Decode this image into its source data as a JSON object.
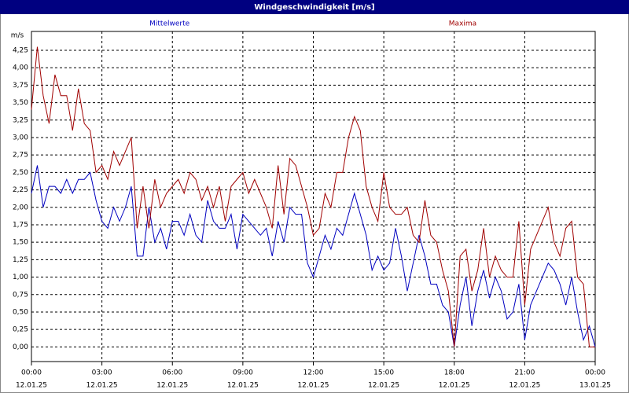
{
  "chart_data": {
    "type": "line",
    "title": "Windgeschwindigkeit [m/s]",
    "y_label": "m/s",
    "x": [
      0,
      0.25,
      0.5,
      0.75,
      1,
      1.25,
      1.5,
      1.75,
      2,
      2.25,
      2.5,
      2.75,
      3,
      3.25,
      3.5,
      3.75,
      4,
      4.25,
      4.5,
      4.75,
      5,
      5.25,
      5.5,
      5.75,
      6,
      6.25,
      6.5,
      6.75,
      7,
      7.25,
      7.5,
      7.75,
      8,
      8.25,
      8.5,
      8.75,
      9,
      9.25,
      9.5,
      9.75,
      10,
      10.25,
      10.5,
      10.75,
      11,
      11.25,
      11.5,
      11.75,
      12,
      12.25,
      12.5,
      12.75,
      13,
      13.25,
      13.5,
      13.75,
      14,
      14.25,
      14.5,
      14.75,
      15,
      15.25,
      15.5,
      15.75,
      16,
      16.25,
      16.5,
      16.75,
      17,
      17.25,
      17.5,
      17.75,
      18,
      18.25,
      18.5,
      18.75,
      19,
      19.25,
      19.5,
      19.75,
      20,
      20.25,
      20.5,
      20.75,
      21,
      21.25,
      21.5,
      21.75,
      22,
      22.25,
      22.5,
      22.75,
      23,
      23.25,
      23.5,
      23.75,
      24
    ],
    "series": [
      {
        "name": "Mittelwerte",
        "color": "#0000c0",
        "values": [
          2.2,
          2.6,
          2.0,
          2.3,
          2.3,
          2.2,
          2.4,
          2.2,
          2.4,
          2.4,
          2.5,
          2.1,
          1.8,
          1.7,
          2.0,
          1.8,
          2.0,
          2.3,
          1.3,
          1.3,
          2.0,
          1.5,
          1.7,
          1.4,
          1.8,
          1.8,
          1.6,
          1.9,
          1.6,
          1.5,
          2.1,
          1.8,
          1.7,
          1.7,
          1.9,
          1.4,
          1.9,
          1.8,
          1.7,
          1.6,
          1.7,
          1.3,
          1.8,
          1.5,
          2.0,
          1.9,
          1.9,
          1.2,
          1.0,
          1.3,
          1.6,
          1.4,
          1.7,
          1.6,
          1.9,
          2.2,
          1.9,
          1.6,
          1.1,
          1.3,
          1.1,
          1.2,
          1.7,
          1.3,
          0.8,
          1.2,
          1.6,
          1.3,
          0.9,
          0.9,
          0.6,
          0.5,
          0.0,
          0.6,
          1.0,
          0.3,
          0.8,
          1.1,
          0.7,
          1.0,
          0.8,
          0.4,
          0.5,
          0.9,
          0.1,
          0.6,
          0.8,
          1.0,
          1.2,
          1.1,
          0.9,
          0.6,
          1.0,
          0.5,
          0.1,
          0.3,
          0.0
        ]
      },
      {
        "name": "Maxima",
        "color": "#a00000",
        "values": [
          3.4,
          4.3,
          3.6,
          3.2,
          3.9,
          3.6,
          3.6,
          3.1,
          3.7,
          3.2,
          3.1,
          2.5,
          2.6,
          2.4,
          2.8,
          2.6,
          2.8,
          3.0,
          1.7,
          2.3,
          1.7,
          2.4,
          2.0,
          2.2,
          2.3,
          2.4,
          2.2,
          2.5,
          2.4,
          2.1,
          2.3,
          2.0,
          2.3,
          1.8,
          2.3,
          2.4,
          2.5,
          2.2,
          2.4,
          2.2,
          2.0,
          1.7,
          2.6,
          1.9,
          2.7,
          2.6,
          2.3,
          2.0,
          1.6,
          1.7,
          2.2,
          2.0,
          2.5,
          2.5,
          3.0,
          3.3,
          3.1,
          2.3,
          2.0,
          1.8,
          2.5,
          2.0,
          1.9,
          1.9,
          2.0,
          1.6,
          1.5,
          2.1,
          1.6,
          1.5,
          1.1,
          0.8,
          0.0,
          1.3,
          1.4,
          0.8,
          1.1,
          1.7,
          1.0,
          1.3,
          1.1,
          1.0,
          1.0,
          1.8,
          0.6,
          1.4,
          1.6,
          1.8,
          2.0,
          1.5,
          1.3,
          1.7,
          1.8,
          1.0,
          0.9,
          0.0,
          0.0
        ]
      }
    ],
    "xlim": [
      0,
      24
    ],
    "xticks": [
      {
        "value": 0,
        "label": "00:00"
      },
      {
        "value": 3,
        "label": "03:00"
      },
      {
        "value": 6,
        "label": "06:00"
      },
      {
        "value": 9,
        "label": "09:00"
      },
      {
        "value": 12,
        "label": "12:00"
      },
      {
        "value": 15,
        "label": "15:00"
      },
      {
        "value": 18,
        "label": "18:00"
      },
      {
        "value": 21,
        "label": "21:00"
      },
      {
        "value": 24,
        "label": "00:00"
      }
    ],
    "xtick_dates": [
      "12.01.25",
      "12.01.25",
      "12.01.25",
      "12.01.25",
      "12.01.25",
      "12.01.25",
      "12.01.25",
      "12.01.25",
      "13.01.25"
    ],
    "ylim": [
      -0.21,
      4.52
    ],
    "yticks": [
      {
        "value": 0,
        "label": "0,00"
      },
      {
        "value": 0.25,
        "label": "0,25"
      },
      {
        "value": 0.5,
        "label": "0,50"
      },
      {
        "value": 0.75,
        "label": "0,75"
      },
      {
        "value": 1,
        "label": "1,00"
      },
      {
        "value": 1.25,
        "label": "1,25"
      },
      {
        "value": 1.5,
        "label": "1,50"
      },
      {
        "value": 1.75,
        "label": "1,75"
      },
      {
        "value": 2,
        "label": "2,00"
      },
      {
        "value": 2.25,
        "label": "2,25"
      },
      {
        "value": 2.5,
        "label": "2,50"
      },
      {
        "value": 2.75,
        "label": "2,75"
      },
      {
        "value": 3,
        "label": "3,00"
      },
      {
        "value": 3.25,
        "label": "3,25"
      },
      {
        "value": 3.5,
        "label": "3,50"
      },
      {
        "value": 3.75,
        "label": "3,75"
      },
      {
        "value": 4,
        "label": "4,00"
      },
      {
        "value": 4.25,
        "label": "4,25"
      }
    ],
    "grid": true
  }
}
